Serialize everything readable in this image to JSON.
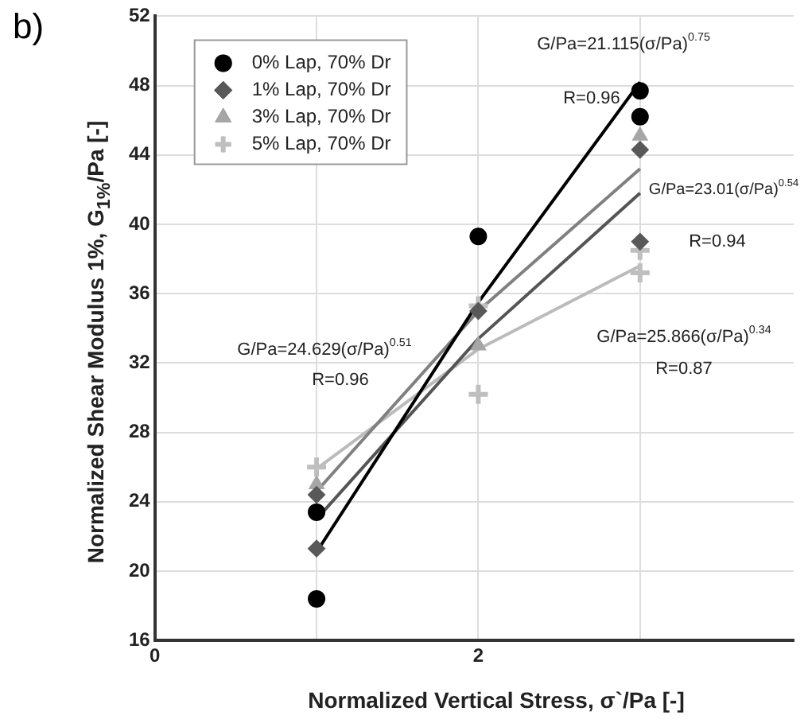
{
  "chart_data": {
    "type": "scatter",
    "xlabel": "Normalized Vertical Stress, σ`/Pa [-]",
    "ylabel": "Normalized Shear Modulus 1%, G$_{1%}$/Pa [-]",
    "xlim": [
      0,
      3.95
    ],
    "xticks": [
      0,
      {
        "value": 1,
        "label": null
      },
      2,
      {
        "value": 3,
        "label": null
      }
    ],
    "ylim": [
      16,
      52
    ],
    "yticks": [
      16,
      20,
      24,
      28,
      32,
      36,
      40,
      44,
      48,
      52
    ],
    "grid": true,
    "legend": "top left",
    "series": [
      {
        "name": "0% Lap, 70% Dr",
        "color": "#000000",
        "marker": "circle",
        "x": [
          1,
          1,
          2,
          3,
          3
        ],
        "values": [
          23.4,
          18.4,
          39.3,
          47.7,
          46.2
        ]
      },
      {
        "name": "1% Lap, 70% Dr",
        "color": "#595959",
        "marker": "diamond",
        "x": [
          1,
          1,
          2,
          3,
          3
        ],
        "values": [
          24.4,
          21.3,
          35.0,
          44.3,
          39.0
        ]
      },
      {
        "name": "3% Lap, 70% Dr",
        "color": "#a6a6a6",
        "marker": "triangle",
        "x": [
          1,
          2,
          3
        ],
        "values": [
          25.0,
          33.0,
          45.1
        ]
      },
      {
        "name": "5% Lap, 70% Dr",
        "color": "#bfbfbf",
        "marker": "cross",
        "x": [
          1,
          2,
          2,
          3,
          3
        ],
        "values": [
          26.0,
          35.3,
          30.2,
          38.5,
          37.2
        ]
      },
      {
        "type": "line",
        "color": "#000000",
        "marker": "none",
        "x": [
          1,
          2,
          3
        ],
        "values": [
          21.1,
          35.5,
          48.2
        ]
      },
      {
        "type": "line",
        "color": "#555555",
        "marker": "none",
        "x": [
          1,
          2,
          3
        ],
        "values": [
          23.0,
          33.4,
          41.8
        ]
      },
      {
        "type": "line",
        "color": "#808080",
        "marker": "none",
        "x": [
          1,
          2,
          3
        ],
        "values": [
          24.6,
          35.0,
          43.2
        ]
      },
      {
        "type": "line",
        "color": "#bbbbbb",
        "marker": "none",
        "x": [
          1,
          2,
          3
        ],
        "values": [
          25.9,
          32.8,
          37.6
        ]
      }
    ],
    "annotations": [
      "b)",
      "G/Pa=21.115(σ/Pa)$^{0.75}$",
      "R=0.96",
      "G/Pa=23.01(σ/Pa)$^{0.54}$",
      "R=0.94",
      "G/Pa=24.629(σ/Pa)$^{0.51}$",
      "R=0.96",
      "G/Pa=25.866(σ/Pa)$^{0.34}$",
      "R=0.87"
    ]
  }
}
